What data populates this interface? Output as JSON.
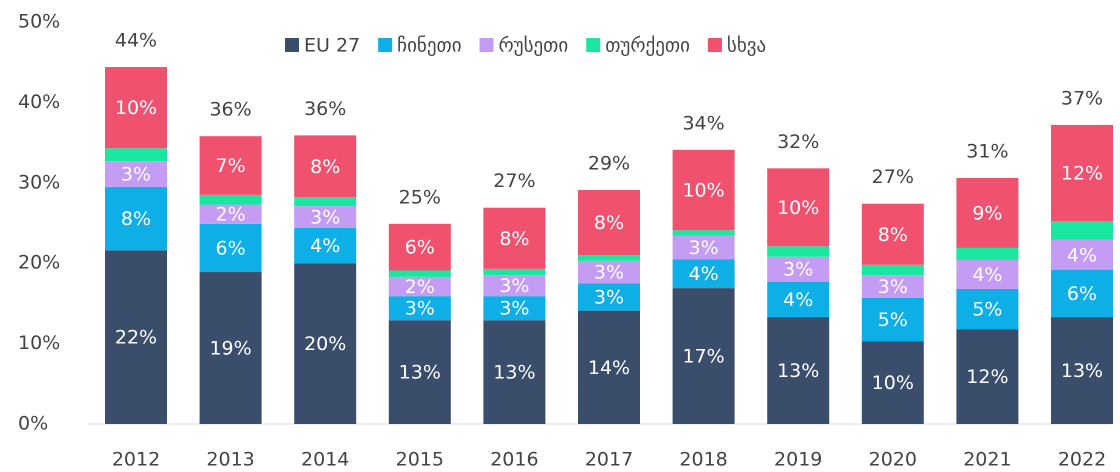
{
  "chart_data": {
    "type": "stacked_bar",
    "categories": [
      "2012",
      "2013",
      "2014",
      "2015",
      "2016",
      "2017",
      "2018",
      "2019",
      "2020",
      "2021",
      "2022"
    ],
    "series": [
      {
        "name": "EU 27",
        "color": "#3a4d6b",
        "values": [
          21.6,
          18.9,
          20.0,
          12.9,
          12.9,
          14.1,
          16.9,
          13.3,
          10.3,
          11.8,
          13.3
        ],
        "value_labels": [
          "22%",
          "19%",
          "20%",
          "13%",
          "13%",
          "14%",
          "17%",
          "13%",
          "10%",
          "12%",
          "13%"
        ]
      },
      {
        "name": "ჩინეთი",
        "color": "#0eaee6",
        "values": [
          7.9,
          6.0,
          4.4,
          3.0,
          3.0,
          3.4,
          3.6,
          4.4,
          5.4,
          5.0,
          5.9
        ],
        "value_labels": [
          "8%",
          "6%",
          "4%",
          "3%",
          "3%",
          "3%",
          "4%",
          "4%",
          "5%",
          "5%",
          "6%"
        ]
      },
      {
        "name": "რუსეთი",
        "color": "#c59cf3",
        "values": [
          3.2,
          2.4,
          2.7,
          2.4,
          2.6,
          2.8,
          2.9,
          3.1,
          2.8,
          3.6,
          3.7
        ],
        "value_labels": [
          "3%",
          "2%",
          "3%",
          "2%",
          "3%",
          "3%",
          "3%",
          "3%",
          "3%",
          "4%",
          "4%"
        ]
      },
      {
        "name": "თურქეთი",
        "color": "#19e7a0",
        "values": [
          1.6,
          1.2,
          1.1,
          0.8,
          0.8,
          0.7,
          0.7,
          1.3,
          1.3,
          1.5,
          2.3
        ]
      },
      {
        "name": "სხვა",
        "color": "#f0516e",
        "values": [
          10.1,
          7.3,
          7.7,
          5.8,
          7.6,
          8.1,
          10.0,
          9.7,
          7.6,
          8.7,
          12.0
        ],
        "value_labels": [
          "10%",
          "7%",
          "8%",
          "6%",
          "8%",
          "8%",
          "10%",
          "10%",
          "8%",
          "9%",
          "12%"
        ]
      }
    ],
    "totals": [
      44.4,
      35.8,
      35.9,
      24.9,
      26.9,
      29.1,
      34.1,
      31.8,
      27.4,
      30.6,
      37.2
    ],
    "total_labels": [
      "44%",
      "36%",
      "36%",
      "25%",
      "27%",
      "29%",
      "34%",
      "32%",
      "27%",
      "31%",
      "37%"
    ],
    "ylim": [
      0,
      50
    ],
    "yticks": [
      {
        "value": 0,
        "label": "0%"
      },
      {
        "value": 10,
        "label": "10%"
      },
      {
        "value": 20,
        "label": "20%"
      },
      {
        "value": 30,
        "label": "30%"
      },
      {
        "value": 40,
        "label": "40%"
      },
      {
        "value": 50,
        "label": "50%"
      }
    ],
    "grid": false,
    "legend": "top"
  }
}
